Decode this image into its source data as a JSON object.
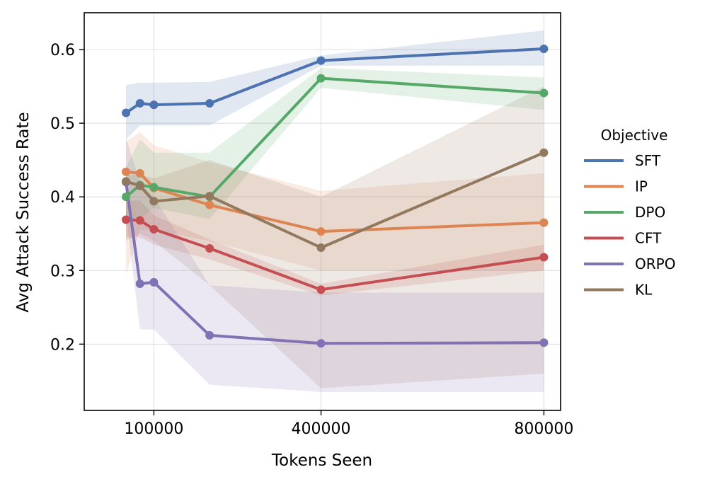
{
  "chart_data": {
    "type": "line",
    "title": "",
    "xlabel": "Tokens Seen",
    "ylabel": "Avg Attack Success Rate",
    "xlim": [
      -25000,
      830000
    ],
    "ylim": [
      0.11,
      0.65
    ],
    "xticks": [
      100000,
      400000,
      800000
    ],
    "xtick_labels": [
      "100000",
      "400000",
      "800000"
    ],
    "yticks": [
      0.2,
      0.3,
      0.4,
      0.5,
      0.6
    ],
    "ytick_labels": [
      "0.2",
      "0.3",
      "0.4",
      "0.5",
      "0.6"
    ],
    "grid": true,
    "legend_title": "Objective",
    "legend_position": "right",
    "x": [
      50000,
      75000,
      100000,
      200000,
      400000,
      800000
    ],
    "series": [
      {
        "name": "SFT",
        "color": "#4c72b0",
        "values": [
          0.514,
          0.527,
          0.525,
          0.527,
          0.585,
          0.601
        ],
        "lower": [
          0.478,
          0.497,
          0.497,
          0.497,
          0.578,
          0.578
        ],
        "upper": [
          0.552,
          0.555,
          0.555,
          0.556,
          0.592,
          0.626
        ]
      },
      {
        "name": "IP",
        "color": "#dd8452",
        "values": [
          0.434,
          0.432,
          0.412,
          0.389,
          0.353,
          0.365
        ],
        "lower": [
          0.295,
          0.355,
          0.355,
          0.34,
          0.3,
          0.3
        ],
        "upper": [
          0.475,
          0.488,
          0.47,
          0.447,
          0.408,
          0.432
        ]
      },
      {
        "name": "DPO",
        "color": "#55a868",
        "values": [
          0.4,
          0.416,
          0.413,
          0.4,
          0.561,
          0.541
        ],
        "lower": [
          0.37,
          0.37,
          0.385,
          0.37,
          0.548,
          0.518
        ],
        "upper": [
          0.44,
          0.478,
          0.46,
          0.46,
          0.575,
          0.562
        ]
      },
      {
        "name": "CFT",
        "color": "#c44e52",
        "values": [
          0.369,
          0.368,
          0.356,
          0.33,
          0.274,
          0.318
        ],
        "lower": [
          0.345,
          0.345,
          0.335,
          0.315,
          0.266,
          0.3
        ],
        "upper": [
          0.395,
          0.395,
          0.375,
          0.342,
          0.282,
          0.335
        ]
      },
      {
        "name": "ORPO",
        "color": "#8172b3",
        "values": [
          0.42,
          0.282,
          0.284,
          0.212,
          0.201,
          0.202
        ],
        "lower": [
          0.375,
          0.22,
          0.22,
          0.145,
          0.135,
          0.135
        ],
        "upper": [
          0.48,
          0.42,
          0.4,
          0.28,
          0.27,
          0.27
        ]
      },
      {
        "name": "KL",
        "color": "#937860",
        "values": [
          0.421,
          0.415,
          0.394,
          0.401,
          0.331,
          0.46
        ],
        "lower": [
          0.34,
          0.35,
          0.34,
          0.28,
          0.14,
          0.16
        ],
        "upper": [
          0.43,
          0.43,
          0.425,
          0.45,
          0.4,
          0.55
        ]
      }
    ]
  }
}
